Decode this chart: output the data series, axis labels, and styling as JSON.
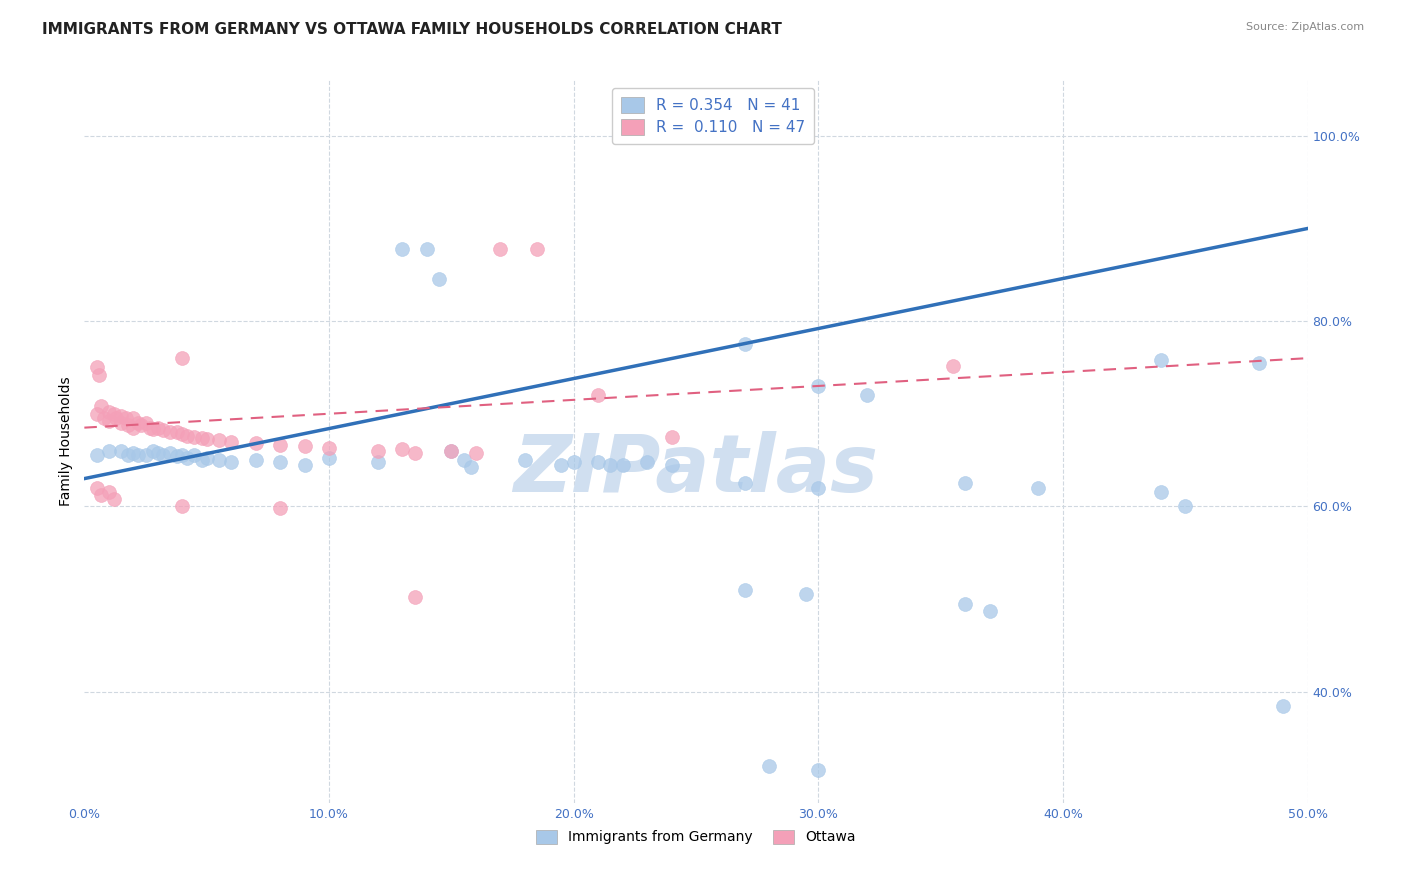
{
  "title": "IMMIGRANTS FROM GERMANY VS OTTAWA FAMILY HOUSEHOLDS CORRELATION CHART",
  "source": "Source: ZipAtlas.com",
  "ylabel": "Family Households",
  "xlim": [
    0.0,
    0.5
  ],
  "ylim": [
    0.28,
    1.06
  ],
  "xtick_labels": [
    "0.0%",
    "10.0%",
    "20.0%",
    "30.0%",
    "40.0%",
    "50.0%"
  ],
  "xtick_vals": [
    0.0,
    0.1,
    0.2,
    0.3,
    0.4,
    0.5
  ],
  "ytick_labels_right": [
    "40.0%",
    "60.0%",
    "80.0%",
    "100.0%"
  ],
  "ytick_vals_right": [
    0.4,
    0.6,
    0.8,
    1.0
  ],
  "blue_color": "#a8c8e8",
  "pink_color": "#f4a0b8",
  "blue_line_color": "#3070b8",
  "pink_line_color": "#e06080",
  "watermark": "ZIPatlas",
  "watermark_color": "#d0dff0",
  "scatter_blue": [
    [
      0.005,
      0.655
    ],
    [
      0.01,
      0.66
    ],
    [
      0.015,
      0.66
    ],
    [
      0.018,
      0.655
    ],
    [
      0.02,
      0.658
    ],
    [
      0.022,
      0.655
    ],
    [
      0.025,
      0.655
    ],
    [
      0.028,
      0.66
    ],
    [
      0.03,
      0.658
    ],
    [
      0.032,
      0.656
    ],
    [
      0.035,
      0.658
    ],
    [
      0.038,
      0.654
    ],
    [
      0.04,
      0.655
    ],
    [
      0.042,
      0.652
    ],
    [
      0.045,
      0.655
    ],
    [
      0.048,
      0.65
    ],
    [
      0.05,
      0.652
    ],
    [
      0.055,
      0.65
    ],
    [
      0.06,
      0.648
    ],
    [
      0.07,
      0.65
    ],
    [
      0.08,
      0.648
    ],
    [
      0.09,
      0.645
    ],
    [
      0.1,
      0.652
    ],
    [
      0.12,
      0.648
    ],
    [
      0.15,
      0.66
    ],
    [
      0.155,
      0.65
    ],
    [
      0.158,
      0.643
    ],
    [
      0.18,
      0.65
    ],
    [
      0.195,
      0.645
    ],
    [
      0.2,
      0.648
    ],
    [
      0.21,
      0.648
    ],
    [
      0.215,
      0.645
    ],
    [
      0.22,
      0.645
    ],
    [
      0.23,
      0.648
    ],
    [
      0.24,
      0.645
    ],
    [
      0.13,
      0.878
    ],
    [
      0.14,
      0.878
    ],
    [
      0.145,
      0.845
    ],
    [
      0.27,
      0.775
    ],
    [
      0.3,
      0.73
    ],
    [
      0.32,
      0.72
    ],
    [
      0.44,
      0.758
    ],
    [
      0.48,
      0.755
    ],
    [
      0.27,
      0.625
    ],
    [
      0.3,
      0.62
    ],
    [
      0.36,
      0.625
    ],
    [
      0.39,
      0.62
    ],
    [
      0.44,
      0.615
    ],
    [
      0.45,
      0.6
    ],
    [
      0.27,
      0.51
    ],
    [
      0.295,
      0.505
    ],
    [
      0.36,
      0.495
    ],
    [
      0.37,
      0.487
    ],
    [
      0.49,
      0.385
    ],
    [
      0.28,
      0.32
    ],
    [
      0.3,
      0.315
    ]
  ],
  "scatter_pink": [
    [
      0.005,
      0.7
    ],
    [
      0.007,
      0.708
    ],
    [
      0.008,
      0.695
    ],
    [
      0.01,
      0.702
    ],
    [
      0.01,
      0.692
    ],
    [
      0.012,
      0.7
    ],
    [
      0.013,
      0.695
    ],
    [
      0.015,
      0.698
    ],
    [
      0.015,
      0.69
    ],
    [
      0.017,
      0.695
    ],
    [
      0.018,
      0.688
    ],
    [
      0.02,
      0.695
    ],
    [
      0.02,
      0.685
    ],
    [
      0.022,
      0.69
    ],
    [
      0.023,
      0.688
    ],
    [
      0.025,
      0.69
    ],
    [
      0.027,
      0.685
    ],
    [
      0.028,
      0.683
    ],
    [
      0.03,
      0.685
    ],
    [
      0.032,
      0.682
    ],
    [
      0.035,
      0.68
    ],
    [
      0.038,
      0.68
    ],
    [
      0.04,
      0.678
    ],
    [
      0.042,
      0.676
    ],
    [
      0.045,
      0.675
    ],
    [
      0.048,
      0.674
    ],
    [
      0.05,
      0.673
    ],
    [
      0.055,
      0.672
    ],
    [
      0.06,
      0.67
    ],
    [
      0.07,
      0.668
    ],
    [
      0.08,
      0.666
    ],
    [
      0.09,
      0.665
    ],
    [
      0.1,
      0.663
    ],
    [
      0.12,
      0.66
    ],
    [
      0.13,
      0.662
    ],
    [
      0.135,
      0.658
    ],
    [
      0.15,
      0.66
    ],
    [
      0.16,
      0.658
    ],
    [
      0.005,
      0.75
    ],
    [
      0.006,
      0.742
    ],
    [
      0.04,
      0.76
    ],
    [
      0.17,
      0.878
    ],
    [
      0.185,
      0.878
    ],
    [
      0.21,
      0.72
    ],
    [
      0.005,
      0.62
    ],
    [
      0.007,
      0.612
    ],
    [
      0.01,
      0.616
    ],
    [
      0.012,
      0.608
    ],
    [
      0.04,
      0.6
    ],
    [
      0.08,
      0.598
    ],
    [
      0.135,
      0.502
    ],
    [
      0.24,
      0.675
    ],
    [
      0.355,
      0.752
    ]
  ],
  "title_fontsize": 11,
  "axis_label_fontsize": 10,
  "tick_fontsize": 9,
  "legend_fontsize": 11,
  "right_tick_color": "#4472c4"
}
